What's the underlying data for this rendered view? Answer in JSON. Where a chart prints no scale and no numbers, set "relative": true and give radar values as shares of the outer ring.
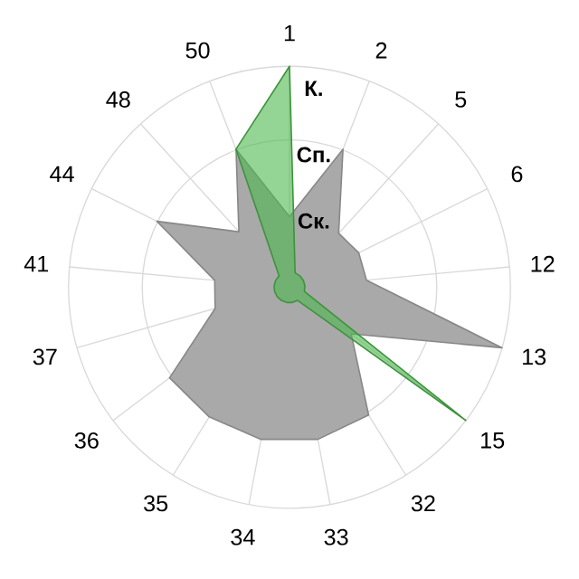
{
  "chart_data": {
    "type": "radar",
    "relative": true,
    "grid": true,
    "categories": [
      "1",
      "2",
      "5",
      "6",
      "12",
      "13",
      "15",
      "32",
      "33",
      "34",
      "35",
      "36",
      "37",
      "41",
      "44",
      "48",
      "50"
    ],
    "series": [
      {
        "color": "#a9a9a9",
        "values": [
          0.32,
          0.67,
          0.33,
          0.35,
          0.35,
          1.0,
          0.35,
          0.68,
          0.7,
          0.7,
          0.69,
          0.68,
          0.35,
          0.34,
          0.67,
          0.34,
          0.67
        ]
      },
      {
        "color": "#4cb84c",
        "values": [
          1.0,
          0.07,
          0.07,
          0.07,
          0.07,
          0.07,
          1.0,
          0.07,
          0.07,
          0.07,
          0.07,
          0.07,
          0.07,
          0.07,
          0.07,
          0.07,
          0.67
        ]
      }
    ],
    "annotations": [
      "К.",
      "Сп.",
      "Ск."
    ]
  }
}
